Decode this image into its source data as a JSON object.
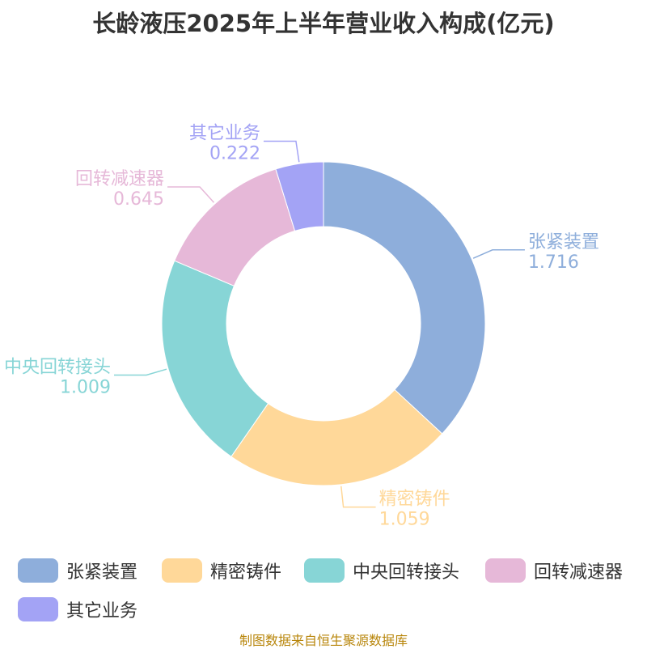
{
  "title": "长龄液压2025年上半年营业收入构成(亿元)",
  "source": "制图数据来自恒生聚源数据库",
  "chart_data": {
    "type": "pie",
    "donut": true,
    "title": "长龄液压2025年上半年营业收入构成(亿元)",
    "categories": [
      "张紧装置",
      "精密铸件",
      "中央回转接头",
      "回转减速器",
      "其它业务"
    ],
    "values": [
      1.716,
      1.059,
      1.009,
      0.645,
      0.222
    ],
    "value_labels": [
      "1.716",
      "1.059",
      "1.009",
      "0.645",
      "0.222"
    ],
    "colors": [
      "#8eaedb",
      "#ffd899",
      "#87d5d6",
      "#e6b8d8",
      "#a3a3f5"
    ],
    "legend_position": "bottom",
    "start": "top",
    "direction": "clockwise"
  }
}
